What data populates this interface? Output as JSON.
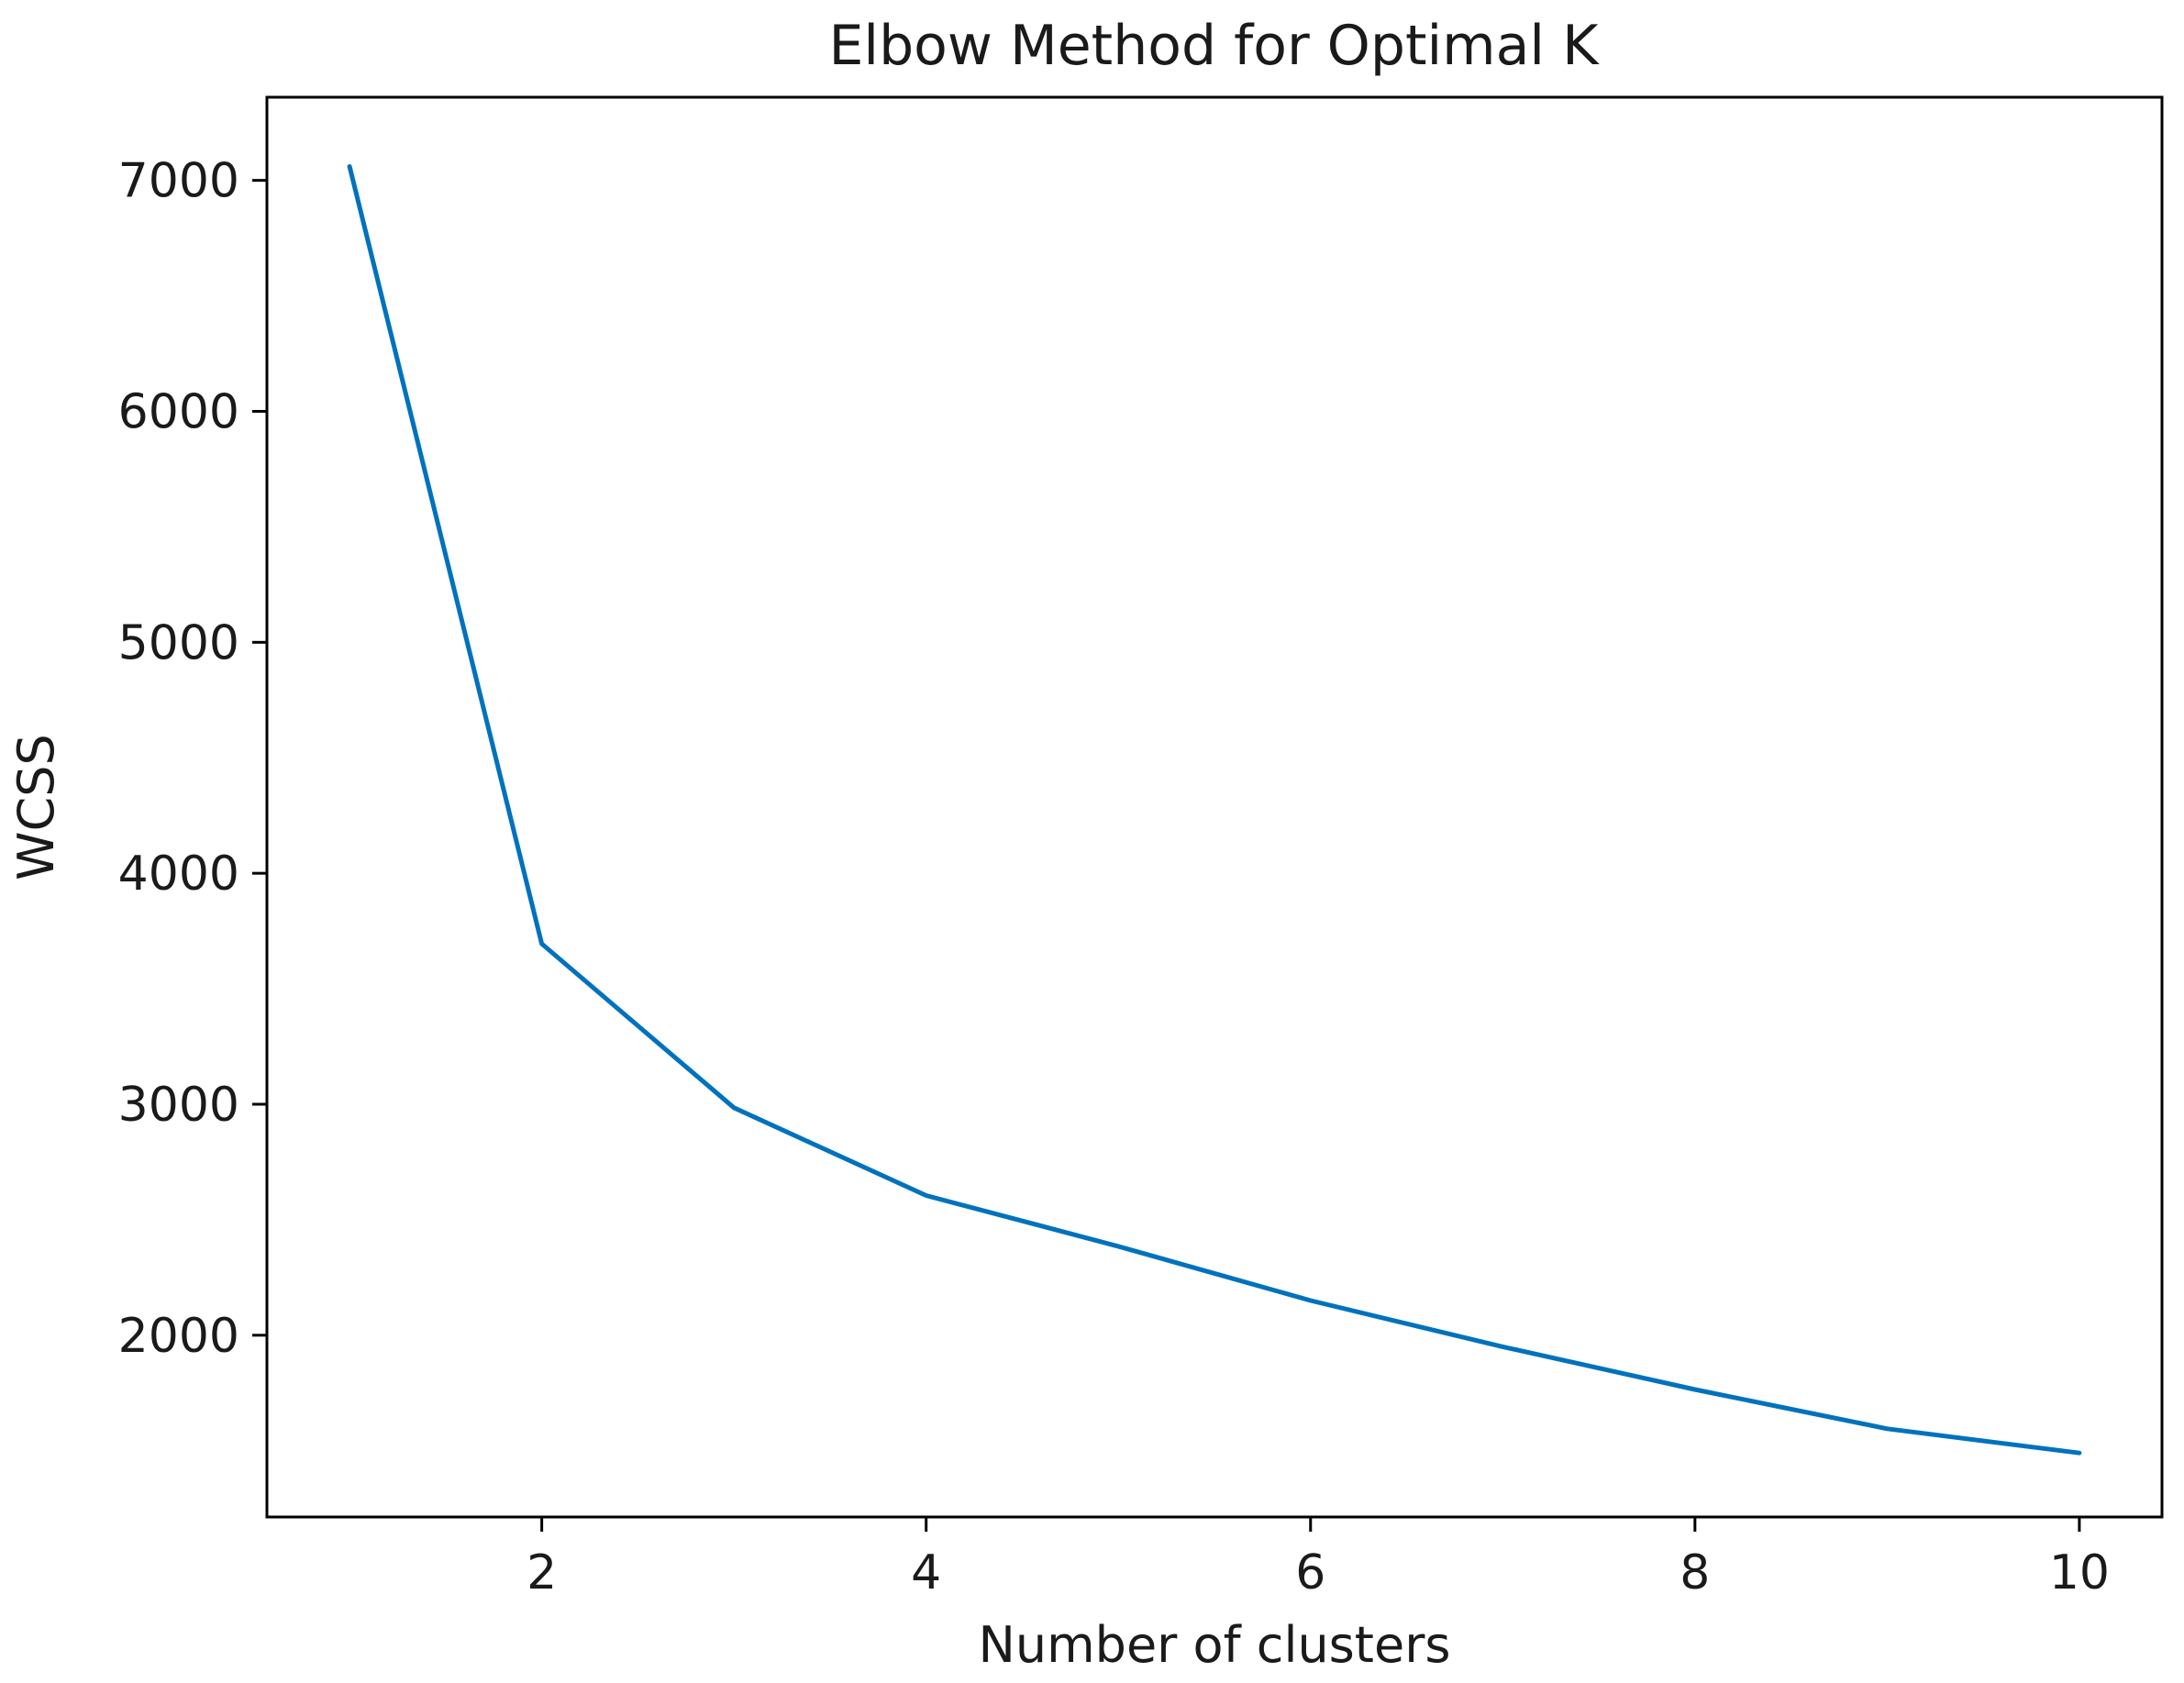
{
  "chart_data": {
    "type": "line",
    "title": "Elbow Method for Optimal K",
    "xlabel": "Number of clusters",
    "ylabel": "WCSS",
    "x": [
      1,
      2,
      3,
      4,
      5,
      6,
      7,
      8,
      9,
      10
    ],
    "series": [
      {
        "values": [
          7060,
          3695,
          2985,
          2605,
          2385,
          2150,
          1950,
          1765,
          1595,
          1490
        ],
        "color": "#0072bd"
      }
    ],
    "xticks": [
      2,
      4,
      6,
      8,
      10
    ],
    "yticks": [
      2000,
      3000,
      4000,
      5000,
      6000,
      7000
    ],
    "xlim": [
      0.57,
      10.43
    ],
    "ylim": [
      1213,
      7360
    ],
    "grid": false,
    "legend": "none"
  }
}
